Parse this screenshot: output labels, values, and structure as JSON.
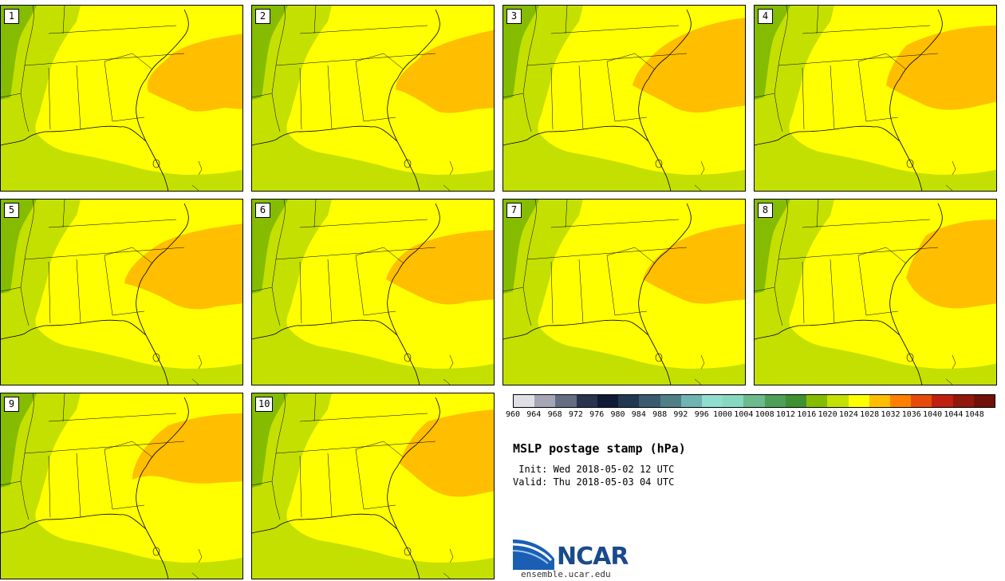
{
  "panels": [
    {
      "label": "1"
    },
    {
      "label": "2"
    },
    {
      "label": "3"
    },
    {
      "label": "4"
    },
    {
      "label": "5"
    },
    {
      "label": "6"
    },
    {
      "label": "7"
    },
    {
      "label": "8"
    },
    {
      "label": "9"
    },
    {
      "label": "10"
    }
  ],
  "colorbar": {
    "colors": [
      "#dfe0e6",
      "#a4a6b6",
      "#646d82",
      "#28334e",
      "#101a35",
      "#223752",
      "#3a5a70",
      "#4f8088",
      "#6fb3b3",
      "#8fded0",
      "#86d9c0",
      "#6bbb8c",
      "#4e9f58",
      "#3f9030",
      "#85bc00",
      "#c4e000",
      "#ffff00",
      "#ffbe00",
      "#ff8000",
      "#e84a0a",
      "#c02010",
      "#90180c",
      "#701008"
    ],
    "ticks": [
      "960",
      "964",
      "968",
      "972",
      "976",
      "980",
      "984",
      "988",
      "992",
      "996",
      "1000",
      "1004",
      "1008",
      "1012",
      "1016",
      "1020",
      "1024",
      "1028",
      "1032",
      "1036",
      "1040",
      "1044",
      "1048"
    ]
  },
  "title": "MSLP postage stamp (hPa)",
  "init": " Init: Wed 2018-05-02 12 UTC",
  "valid": "Valid: Thu 2018-05-03 04 UTC",
  "logo": {
    "text": "NCAR",
    "url": "ensemble.ucar.edu"
  }
}
